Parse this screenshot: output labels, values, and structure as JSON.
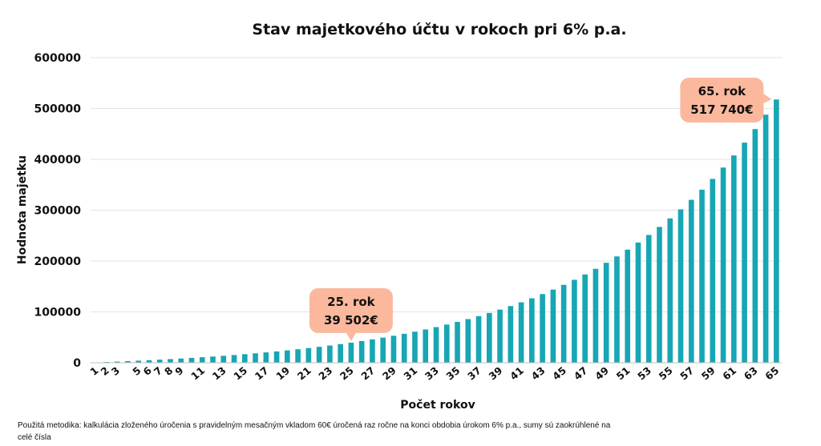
{
  "chart_data": {
    "type": "bar",
    "title": "Stav majetkového účtu v rokoch pri 6% p.a.",
    "xlabel": "Počet rokov",
    "ylabel": "Hodnota majetku",
    "ylim": [
      0,
      600000
    ],
    "yticks": [
      "0",
      "100000",
      "200000",
      "300000",
      "400000",
      "500000",
      "600000"
    ],
    "grid": true,
    "bar_color": "#17a6b4",
    "categories": [
      "1",
      "2",
      "3",
      "4",
      "5",
      "6",
      "7",
      "8",
      "9",
      "10",
      "11",
      "12",
      "13",
      "14",
      "15",
      "16",
      "17",
      "18",
      "19",
      "20",
      "21",
      "22",
      "23",
      "24",
      "25",
      "26",
      "27",
      "28",
      "29",
      "30",
      "31",
      "32",
      "33",
      "34",
      "35",
      "36",
      "37",
      "38",
      "39",
      "40",
      "41",
      "42",
      "43",
      "44",
      "45",
      "46",
      "47",
      "48",
      "49",
      "50",
      "51",
      "52",
      "53",
      "54",
      "55",
      "56",
      "57",
      "58",
      "59",
      "60",
      "61",
      "62",
      "63",
      "64",
      "65"
    ],
    "xtick_labels": [
      "1",
      "2",
      "3",
      "",
      "5",
      "6",
      "7",
      "8",
      "9",
      "",
      "11",
      "",
      "13",
      "",
      "15",
      "",
      "17",
      "",
      "19",
      "",
      "21",
      "",
      "23",
      "",
      "25",
      "",
      "27",
      "",
      "29",
      "",
      "31",
      "",
      "33",
      "",
      "35",
      "",
      "37",
      "",
      "39",
      "",
      "41",
      "",
      "43",
      "",
      "45",
      "",
      "47",
      "",
      "49",
      "",
      "51",
      "",
      "53",
      "",
      "55",
      "",
      "57",
      "",
      "59",
      "",
      "61",
      "",
      "63",
      "",
      "65"
    ],
    "values": [
      720,
      1483,
      2292,
      3150,
      4059,
      5023,
      6044,
      7127,
      8275,
      9491,
      10781,
      12148,
      13597,
      15133,
      16761,
      18487,
      20316,
      22255,
      24310,
      26489,
      28798,
      31246,
      33840,
      36591,
      39502,
      42600,
      45876,
      49349,
      53030,
      56932,
      61068,
      65452,
      70099,
      75025,
      80246,
      85780,
      91647,
      97866,
      104458,
      111445,
      118851,
      126702,
      135024,
      143845,
      153195,
      163107,
      173613,
      184750,
      196555,
      209068,
      222332,
      236392,
      251296,
      267093,
      283839,
      301589,
      320405,
      340349,
      361490,
      383900,
      407654,
      432833,
      459523,
      487814,
      517740
    ],
    "annotations": [
      {
        "category": "25",
        "line1": "25. rok",
        "line2": "39 502€"
      },
      {
        "category": "65",
        "line1": "65. rok",
        "line2": "517 740€"
      }
    ],
    "annotation_color": "#fbb89d"
  },
  "footnote": "Použitá metodika: kalkulácia zloženého úročenia s pravidelným mesačným vkladom 60€ úročená raz ročne na konci obdobia úrokom 6% p.a., sumy sú zaokrúhlené na celé čísla"
}
